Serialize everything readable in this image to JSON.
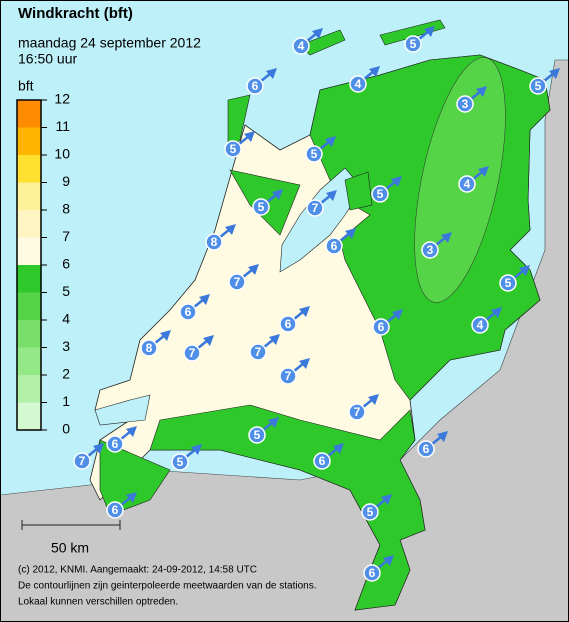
{
  "header": {
    "title": "Windkracht (bft)",
    "date": "maandag 24 september 2012",
    "time": "16:50 uur"
  },
  "legend": {
    "unit": "bft",
    "ticks": [
      0,
      1,
      2,
      3,
      4,
      5,
      6,
      7,
      8,
      9,
      10,
      11,
      12
    ],
    "colors": [
      "#d4f8d0",
      "#b2f0a8",
      "#94e888",
      "#78e06a",
      "#56d448",
      "#2ec82a",
      "#fffae2",
      "#fff4c4",
      "#fff09a",
      "#ffe030",
      "#ffb400",
      "#ff8c00"
    ]
  },
  "scale": {
    "label": "50 km"
  },
  "stations": [
    4,
    5,
    6,
    4,
    5,
    3,
    5,
    5,
    4,
    5,
    5,
    7,
    8,
    6,
    3,
    7,
    5,
    6,
    6,
    6,
    4,
    8,
    7,
    7,
    7,
    7,
    5,
    6,
    6,
    6,
    7,
    5,
    5,
    6,
    6
  ],
  "footer": {
    "lines": [
      "(c) 2012, KNMI. Aangemaakt: 24-09-2012, 14:58 UTC",
      "De contourlijnen zijn geinterpoleerde meetwaarden van de stations.",
      "Lokaal kunnen verschillen optreden."
    ]
  }
}
